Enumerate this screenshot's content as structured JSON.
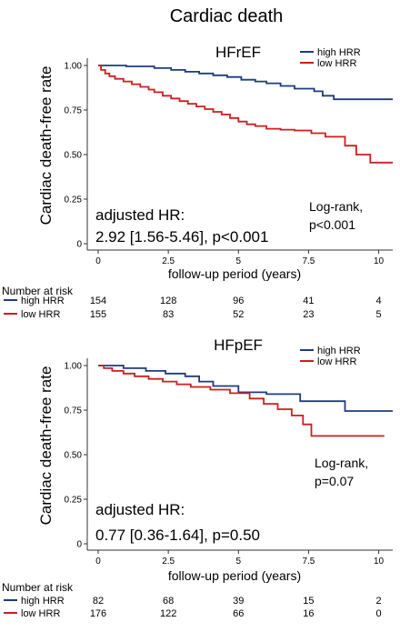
{
  "title": "Cardiac death",
  "colors": {
    "high_hrr": "#1f3b80",
    "low_hrr": "#cc1f1f"
  },
  "chart_data": [
    {
      "type": "line",
      "subtype": "kaplan-meier",
      "title": "HFrEF",
      "xlabel": "follow-up period (years)",
      "ylabel": "Cardiac death-free rate",
      "xlim": [
        0,
        10.5
      ],
      "ylim": [
        0,
        1
      ],
      "xticks": [
        0,
        2.5,
        5,
        7.5,
        10
      ],
      "xtick_labels": [
        "0",
        "2.5",
        "5",
        "7.5",
        "10"
      ],
      "yticks": [
        0,
        0.25,
        0.5,
        0.75,
        1.0
      ],
      "ytick_labels": [
        "0",
        "0.25",
        "0.50",
        "0.75",
        "1.00"
      ],
      "grid": false,
      "legend_position": "top-right",
      "series": [
        {
          "name": "high HRR",
          "color": "#1f3b80",
          "points": [
            [
              0,
              1.0
            ],
            [
              1.0,
              1.0
            ],
            [
              1.0,
              0.995
            ],
            [
              2.0,
              0.995
            ],
            [
              2.0,
              0.985
            ],
            [
              2.6,
              0.985
            ],
            [
              2.6,
              0.975
            ],
            [
              3.1,
              0.975
            ],
            [
              3.1,
              0.965
            ],
            [
              3.6,
              0.965
            ],
            [
              3.6,
              0.955
            ],
            [
              4.1,
              0.955
            ],
            [
              4.1,
              0.945
            ],
            [
              4.6,
              0.945
            ],
            [
              4.6,
              0.935
            ],
            [
              5.1,
              0.935
            ],
            [
              5.1,
              0.92
            ],
            [
              5.6,
              0.92
            ],
            [
              5.6,
              0.91
            ],
            [
              6.0,
              0.91
            ],
            [
              6.0,
              0.9
            ],
            [
              6.5,
              0.9
            ],
            [
              6.5,
              0.885
            ],
            [
              7.0,
              0.885
            ],
            [
              7.0,
              0.87
            ],
            [
              7.7,
              0.87
            ],
            [
              7.7,
              0.855
            ],
            [
              8.0,
              0.855
            ],
            [
              8.0,
              0.83
            ],
            [
              8.4,
              0.83
            ],
            [
              8.4,
              0.81
            ],
            [
              10.5,
              0.81
            ]
          ]
        },
        {
          "name": "low HRR",
          "color": "#cc1f1f",
          "points": [
            [
              0,
              1.0
            ],
            [
              0.1,
              1.0
            ],
            [
              0.1,
              0.975
            ],
            [
              0.25,
              0.975
            ],
            [
              0.25,
              0.955
            ],
            [
              0.4,
              0.955
            ],
            [
              0.4,
              0.94
            ],
            [
              0.6,
              0.94
            ],
            [
              0.6,
              0.925
            ],
            [
              0.9,
              0.925
            ],
            [
              0.9,
              0.91
            ],
            [
              1.2,
              0.91
            ],
            [
              1.2,
              0.895
            ],
            [
              1.5,
              0.895
            ],
            [
              1.5,
              0.88
            ],
            [
              1.8,
              0.88
            ],
            [
              1.8,
              0.865
            ],
            [
              2.0,
              0.865
            ],
            [
              2.0,
              0.85
            ],
            [
              2.3,
              0.85
            ],
            [
              2.3,
              0.83
            ],
            [
              2.6,
              0.83
            ],
            [
              2.6,
              0.815
            ],
            [
              2.9,
              0.815
            ],
            [
              2.9,
              0.8
            ],
            [
              3.2,
              0.8
            ],
            [
              3.2,
              0.785
            ],
            [
              3.5,
              0.785
            ],
            [
              3.5,
              0.77
            ],
            [
              3.8,
              0.77
            ],
            [
              3.8,
              0.755
            ],
            [
              4.1,
              0.755
            ],
            [
              4.1,
              0.74
            ],
            [
              4.4,
              0.74
            ],
            [
              4.4,
              0.725
            ],
            [
              4.7,
              0.725
            ],
            [
              4.7,
              0.705
            ],
            [
              5.0,
              0.705
            ],
            [
              5.0,
              0.685
            ],
            [
              5.3,
              0.685
            ],
            [
              5.3,
              0.67
            ],
            [
              5.6,
              0.67
            ],
            [
              5.6,
              0.66
            ],
            [
              6.0,
              0.66
            ],
            [
              6.0,
              0.645
            ],
            [
              6.5,
              0.645
            ],
            [
              6.5,
              0.64
            ],
            [
              7.0,
              0.64
            ],
            [
              7.0,
              0.635
            ],
            [
              7.6,
              0.635
            ],
            [
              7.6,
              0.62
            ],
            [
              8.1,
              0.62
            ],
            [
              8.1,
              0.6
            ],
            [
              8.8,
              0.6
            ],
            [
              8.8,
              0.55
            ],
            [
              9.2,
              0.55
            ],
            [
              9.2,
              0.5
            ],
            [
              9.7,
              0.5
            ],
            [
              9.7,
              0.455
            ],
            [
              10.5,
              0.455
            ]
          ]
        }
      ],
      "annotations": {
        "logrank_1": "Log-rank,",
        "logrank_2": "p<0.001",
        "hr_1": "adjusted HR:",
        "hr_2": "2.92 [1.56-5.46], p<0.001"
      },
      "risk_table": {
        "header": "Number at risk",
        "rows": [
          {
            "label": "high HRR",
            "values": [
              "154",
              "128",
              "96",
              "41",
              "4"
            ]
          },
          {
            "label": "low HRR",
            "values": [
              "155",
              "83",
              "52",
              "23",
              "5"
            ]
          }
        ]
      }
    },
    {
      "type": "line",
      "subtype": "kaplan-meier",
      "title": "HFpEF",
      "xlabel": "follow-up period (years)",
      "ylabel": "Cardiac death-free rate",
      "xlim": [
        0,
        10.5
      ],
      "ylim": [
        0,
        1
      ],
      "xticks": [
        0,
        2.5,
        5,
        7.5,
        10
      ],
      "xtick_labels": [
        "0",
        "2.5",
        "5",
        "7.5",
        "10"
      ],
      "yticks": [
        0,
        0.25,
        0.5,
        0.75,
        1.0
      ],
      "ytick_labels": [
        "0",
        "0.25",
        "0.50",
        "0.75",
        "1.00"
      ],
      "grid": false,
      "legend_position": "top-right",
      "series": [
        {
          "name": "high HRR",
          "color": "#1f3b80",
          "points": [
            [
              0,
              1.0
            ],
            [
              0.9,
              1.0
            ],
            [
              0.9,
              0.985
            ],
            [
              1.7,
              0.985
            ],
            [
              1.7,
              0.97
            ],
            [
              2.4,
              0.97
            ],
            [
              2.4,
              0.955
            ],
            [
              3.1,
              0.955
            ],
            [
              3.1,
              0.94
            ],
            [
              3.6,
              0.94
            ],
            [
              3.6,
              0.91
            ],
            [
              4.1,
              0.91
            ],
            [
              4.1,
              0.885
            ],
            [
              5.0,
              0.885
            ],
            [
              5.0,
              0.85
            ],
            [
              6.0,
              0.85
            ],
            [
              6.0,
              0.84
            ],
            [
              7.2,
              0.84
            ],
            [
              7.2,
              0.8
            ],
            [
              8.8,
              0.8
            ],
            [
              8.8,
              0.745
            ],
            [
              10.5,
              0.745
            ]
          ]
        },
        {
          "name": "low HRR",
          "color": "#cc1f1f",
          "points": [
            [
              0,
              1.0
            ],
            [
              0.2,
              1.0
            ],
            [
              0.2,
              0.985
            ],
            [
              0.5,
              0.985
            ],
            [
              0.5,
              0.97
            ],
            [
              0.9,
              0.97
            ],
            [
              0.9,
              0.955
            ],
            [
              1.3,
              0.955
            ],
            [
              1.3,
              0.94
            ],
            [
              1.8,
              0.94
            ],
            [
              1.8,
              0.925
            ],
            [
              2.3,
              0.925
            ],
            [
              2.3,
              0.91
            ],
            [
              2.8,
              0.91
            ],
            [
              2.8,
              0.895
            ],
            [
              3.3,
              0.895
            ],
            [
              3.3,
              0.88
            ],
            [
              4.0,
              0.88
            ],
            [
              4.0,
              0.865
            ],
            [
              4.7,
              0.865
            ],
            [
              4.7,
              0.845
            ],
            [
              5.4,
              0.845
            ],
            [
              5.4,
              0.815
            ],
            [
              5.9,
              0.815
            ],
            [
              5.9,
              0.785
            ],
            [
              6.4,
              0.785
            ],
            [
              6.4,
              0.755
            ],
            [
              6.9,
              0.755
            ],
            [
              6.9,
              0.72
            ],
            [
              7.3,
              0.72
            ],
            [
              7.3,
              0.67
            ],
            [
              7.6,
              0.67
            ],
            [
              7.6,
              0.605
            ],
            [
              10.2,
              0.605
            ]
          ]
        }
      ],
      "annotations": {
        "logrank_1": "Log-rank,",
        "logrank_2": "p=0.07",
        "hr_1": "adjusted HR:",
        "hr_2": "0.77 [0.36-1.64], p=0.50"
      },
      "risk_table": {
        "header": "Number at risk",
        "rows": [
          {
            "label": "high HRR",
            "values": [
              "82",
              "68",
              "39",
              "15",
              "2"
            ]
          },
          {
            "label": "low HRR",
            "values": [
              "176",
              "122",
              "66",
              "16",
              "0"
            ]
          }
        ]
      }
    }
  ]
}
